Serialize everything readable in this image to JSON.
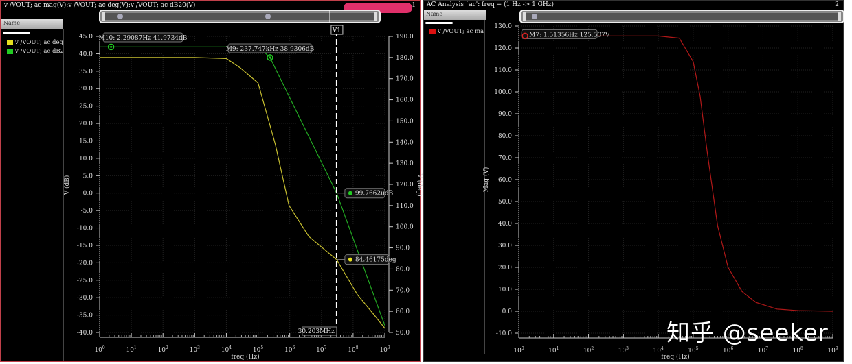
{
  "panel1": {
    "title": "v /VOUT; ac mag(V):v /VOUT; ac deg(V):v /VOUT; ac dB20(V)",
    "number": "1",
    "name_header": "Name",
    "legend": [
      {
        "label": "v /VOUT; ac deg",
        "color": "#e6e020"
      },
      {
        "label": "v /VOUT; ac dB2",
        "color": "#22cc22"
      }
    ]
  },
  "panel2": {
    "title": "AC Analysis `ac': freq = (1 Hz -> 1 GHz)",
    "number": "2",
    "name_header": "Name",
    "legend": [
      {
        "label": "v /VOUT; ac ma",
        "color": "#dd1111"
      }
    ]
  },
  "watermark": "知乎 @seeker",
  "chart_data": [
    {
      "type": "line",
      "xlabel": "freq (Hz)",
      "ylabel": "V (dB)",
      "y2label": "V (deg)",
      "xscale": "log",
      "xlim": [
        1,
        1000000000
      ],
      "ylim": [
        -40,
        45
      ],
      "y2lim": [
        50,
        190
      ],
      "grid": true,
      "xticks": [
        "10^0",
        "10^1",
        "10^2",
        "10^3",
        "10^4",
        "10^5",
        "10^6",
        "10^7",
        "10^8",
        "10^9"
      ],
      "series": [
        {
          "name": "v /VOUT; ac deg",
          "axis": "right",
          "color": "#c8c030",
          "x": [
            1,
            1000,
            10000,
            28000,
            100000,
            350000,
            950000,
            4000000,
            30203000,
            135000000,
            480000000,
            1000000000
          ],
          "y": [
            180,
            180,
            179.5,
            175,
            168,
            139,
            110,
            95.4,
            84.46,
            68,
            58,
            52
          ]
        },
        {
          "name": "v /VOUT; ac dB2",
          "axis": "left",
          "color": "#22aa22",
          "x": [
            1,
            10000,
            100000,
            150000,
            237747,
            30203000,
            1000000000
          ],
          "y": [
            41.97,
            41.97,
            41.5,
            40.6,
            38.93,
            9.98e-05,
            -38
          ]
        }
      ],
      "markers": [
        {
          "label": "M10: 2.29087Hz 41.9734dB",
          "x": 2.29087,
          "y": 41.9734,
          "axis": "left"
        },
        {
          "label": "M9: 237.747kHz 38.9306dB",
          "x": 237747,
          "y": 38.9306,
          "axis": "left"
        }
      ],
      "vertical_marker": {
        "label": "V1",
        "x_label": "30.203MHz",
        "x": 30203000,
        "readouts": [
          {
            "label": "99.7662udB",
            "color": "#22cc22"
          },
          {
            "label": "84.46175deg",
            "color": "#e6e020"
          }
        ]
      }
    },
    {
      "type": "line",
      "xlabel": "freq (Hz)",
      "ylabel": "Mag (V)",
      "xscale": "log",
      "xlim": [
        1,
        1000000000
      ],
      "ylim": [
        -10,
        130
      ],
      "grid": true,
      "xticks": [
        "10^0",
        "10^1",
        "10^2",
        "10^3",
        "10^4",
        "10^5",
        "10^6",
        "10^7",
        "10^8",
        "10^9"
      ],
      "series": [
        {
          "name": "v /VOUT; ac ma",
          "color": "#b01818",
          "x": [
            1,
            10000,
            40000,
            100000,
            158000,
            250000,
            500000,
            1000000,
            2500000,
            6300000,
            25000000,
            100000000,
            1000000000
          ],
          "y": [
            125.5,
            125.5,
            124.5,
            113.75,
            98,
            73,
            39,
            20,
            9,
            4,
            1,
            0.3,
            0
          ]
        }
      ],
      "markers": [
        {
          "label": "M7: 1.51356Hz 125.507V",
          "x": 1.51356,
          "y": 125.507
        }
      ]
    }
  ]
}
